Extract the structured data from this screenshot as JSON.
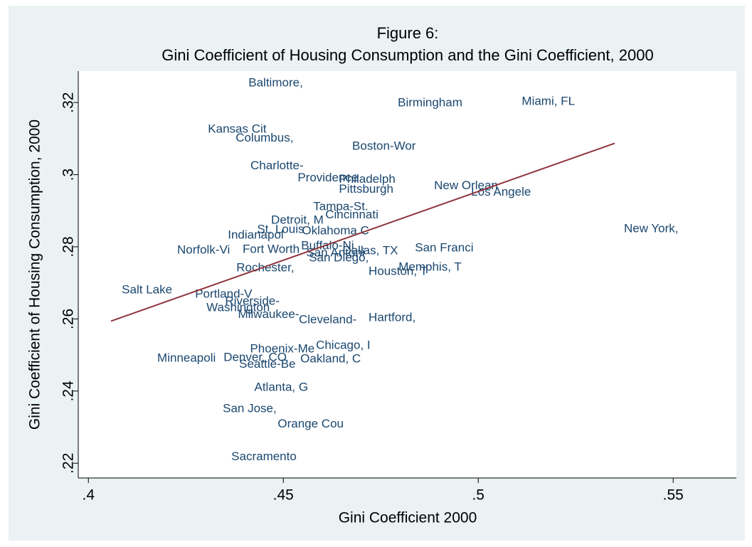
{
  "chart_data": {
    "type": "scatter",
    "title": "Figure 6:",
    "subtitle": "Gini Coefficient of Housing Consumption and the Gini Coefficient, 2000",
    "x_label": "Gini Coefficient 2000",
    "y_label": "Gini Coefficient of Housing Consumption, 2000",
    "xlim": [
      0.3974,
      0.5662
    ],
    "ylim": [
      0.2159,
      0.3287
    ],
    "xticks": [
      {
        "value": 0.4,
        "label": ".4"
      },
      {
        "value": 0.45,
        "label": ".45"
      },
      {
        "value": 0.5,
        "label": ".5"
      },
      {
        "value": 0.55,
        "label": ".55"
      }
    ],
    "yticks": [
      {
        "value": 0.22,
        "label": ".22"
      },
      {
        "value": 0.24,
        "label": ".24"
      },
      {
        "value": 0.26,
        "label": ".26"
      },
      {
        "value": 0.28,
        "label": ".28"
      },
      {
        "value": 0.3,
        "label": ".3"
      },
      {
        "value": 0.32,
        "label": ".32"
      }
    ],
    "label_color": "#1a476f",
    "points": [
      {
        "label": "Baltimore,",
        "x": 0.4407,
        "y": 0.3253
      },
      {
        "label": "Birmingham",
        "x": 0.479,
        "y": 0.3198
      },
      {
        "label": "Miami, FL",
        "x": 0.5108,
        "y": 0.3202
      },
      {
        "label": "Kansas Cit",
        "x": 0.4303,
        "y": 0.3125
      },
      {
        "label": "Columbus,",
        "x": 0.4374,
        "y": 0.3101
      },
      {
        "label": "Boston-Wor",
        "x": 0.4673,
        "y": 0.3078
      },
      {
        "label": "Charlotte-",
        "x": 0.4412,
        "y": 0.3024
      },
      {
        "label": "Providence",
        "x": 0.4533,
        "y": 0.299
      },
      {
        "label": "Philadelph",
        "x": 0.4639,
        "y": 0.2986
      },
      {
        "label": "Pittsburgh",
        "x": 0.4639,
        "y": 0.2959
      },
      {
        "label": "New Orlean",
        "x": 0.4883,
        "y": 0.2968
      },
      {
        "label": "Los Angele",
        "x": 0.4978,
        "y": 0.2951
      },
      {
        "label": "Tampa-St.",
        "x": 0.4573,
        "y": 0.291
      },
      {
        "label": "Cincinnati",
        "x": 0.4604,
        "y": 0.2888
      },
      {
        "label": "Detroit, M",
        "x": 0.4465,
        "y": 0.2873
      },
      {
        "label": "New York,",
        "x": 0.537,
        "y": 0.2849
      },
      {
        "label": "St. Louis",
        "x": 0.4429,
        "y": 0.2847
      },
      {
        "label": "Oklahoma C",
        "x": 0.4544,
        "y": 0.2843
      },
      {
        "label": "Indianapol",
        "x": 0.4354,
        "y": 0.2831
      },
      {
        "label": "Norfolk-Vi",
        "x": 0.4224,
        "y": 0.279
      },
      {
        "label": "Fort Worth",
        "x": 0.4392,
        "y": 0.2792
      },
      {
        "label": "Buffalo-Ni",
        "x": 0.4542,
        "y": 0.2802
      },
      {
        "label": "Dallas, TX",
        "x": 0.4648,
        "y": 0.2788
      },
      {
        "label": "San Antoni",
        "x": 0.4555,
        "y": 0.2782
      },
      {
        "label": "San Diego,",
        "x": 0.4562,
        "y": 0.2768
      },
      {
        "label": "San Franci",
        "x": 0.4834,
        "y": 0.2796
      },
      {
        "label": "Rochester,",
        "x": 0.4376,
        "y": 0.2741
      },
      {
        "label": "Houston, T",
        "x": 0.4715,
        "y": 0.2731
      },
      {
        "label": "Memphis, T",
        "x": 0.4792,
        "y": 0.2743
      },
      {
        "label": "Salt Lake",
        "x": 0.4082,
        "y": 0.268
      },
      {
        "label": "Portland-V",
        "x": 0.427,
        "y": 0.2668
      },
      {
        "label": "Riverside-",
        "x": 0.4347,
        "y": 0.2648
      },
      {
        "label": "Washington",
        "x": 0.4299,
        "y": 0.263
      },
      {
        "label": "Milwaukee-",
        "x": 0.438,
        "y": 0.2612
      },
      {
        "label": "Cleveland-",
        "x": 0.4536,
        "y": 0.2597
      },
      {
        "label": "Hartford,",
        "x": 0.4715,
        "y": 0.2603
      },
      {
        "label": "Chicago, I",
        "x": 0.458,
        "y": 0.2526
      },
      {
        "label": "Phoenix-Me",
        "x": 0.4411,
        "y": 0.2516
      },
      {
        "label": "Minneapoli",
        "x": 0.4173,
        "y": 0.249
      },
      {
        "label": "Denver, CO",
        "x": 0.4343,
        "y": 0.2492
      },
      {
        "label": "Oakland, C",
        "x": 0.454,
        "y": 0.2488
      },
      {
        "label": "Seattle-Be",
        "x": 0.4383,
        "y": 0.2474
      },
      {
        "label": "Atlanta, G",
        "x": 0.4422,
        "y": 0.2409
      },
      {
        "label": "San Jose,",
        "x": 0.4341,
        "y": 0.235
      },
      {
        "label": "Orange Cou",
        "x": 0.4482,
        "y": 0.2308
      },
      {
        "label": "Sacramento",
        "x": 0.4363,
        "y": 0.2217
      }
    ],
    "fit_line": {
      "color": "#90353b",
      "x": [
        0.4058,
        0.535
      ],
      "y": [
        0.2594,
        0.3087
      ]
    }
  }
}
